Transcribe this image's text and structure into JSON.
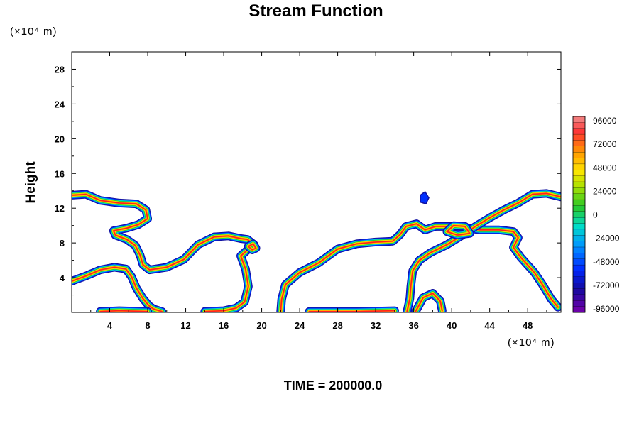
{
  "chart_data": {
    "type": "contour",
    "title": "Stream Function",
    "ylabel": "Height",
    "xlabel": "",
    "x_unit": "(×10⁴ m)",
    "y_unit": "(×10⁴ m)",
    "footer": "TIME = 200000.0",
    "xlim": [
      0,
      51.5
    ],
    "ylim": [
      0,
      30
    ],
    "x_ticks": [
      "4",
      "8",
      "12",
      "16",
      "20",
      "24",
      "28",
      "32",
      "36",
      "40",
      "44",
      "48"
    ],
    "y_ticks": [
      "4",
      "8",
      "12",
      "16",
      "20",
      "24",
      "28"
    ],
    "grid": false,
    "legend_position": "right",
    "colorbar": {
      "min": -96000,
      "max": 96000,
      "labels": [
        "96000",
        "72000",
        "48000",
        "24000",
        "0",
        "-24000",
        "-48000",
        "-72000",
        "-96000"
      ]
    },
    "fronts": [
      [
        [
          0,
          13.5
        ],
        [
          1.5,
          13.6
        ],
        [
          3,
          12.9
        ],
        [
          5,
          12.6
        ],
        [
          6.8,
          12.5
        ],
        [
          7.8,
          11.8
        ],
        [
          8.0,
          10.8
        ],
        [
          7.0,
          10.1
        ],
        [
          5.8,
          9.7
        ],
        [
          4.4,
          9.4
        ],
        [
          4.6,
          8.9
        ],
        [
          5.8,
          8.4
        ],
        [
          6.7,
          7.7
        ],
        [
          7.2,
          6.6
        ],
        [
          7.5,
          5.5
        ],
        [
          8.2,
          4.9
        ],
        [
          10,
          5.2
        ],
        [
          11.8,
          6.1
        ],
        [
          13.3,
          7.8
        ],
        [
          15,
          8.7
        ],
        [
          16.5,
          8.8
        ],
        [
          17.8,
          8.5
        ],
        [
          18.5,
          8.4
        ],
        [
          19.2,
          7.8
        ],
        [
          18.7,
          7.4
        ],
        [
          17.8,
          6.5
        ],
        [
          18.3,
          5.0
        ],
        [
          18.6,
          3.0
        ],
        [
          18.2,
          1.2
        ],
        [
          17.3,
          0.5
        ],
        [
          16.0,
          0.2
        ],
        [
          14.0,
          0.1
        ]
      ],
      [
        [
          0,
          3.6
        ],
        [
          1.5,
          4.2
        ],
        [
          3,
          4.9
        ],
        [
          4.5,
          5.2
        ],
        [
          5.7,
          5.0
        ],
        [
          6.3,
          4.1
        ],
        [
          6.8,
          2.8
        ],
        [
          7.5,
          1.6
        ],
        [
          8.1,
          0.8
        ],
        [
          8.6,
          0.4
        ],
        [
          9.5,
          0.1
        ]
      ],
      [
        [
          22.0,
          0.1
        ],
        [
          22.1,
          1.5
        ],
        [
          22.5,
          3.2
        ],
        [
          24,
          4.6
        ],
        [
          26,
          5.7
        ],
        [
          28,
          7.3
        ],
        [
          30,
          7.9
        ],
        [
          32,
          8.1
        ],
        [
          33.8,
          8.2
        ],
        [
          34.6,
          9.0
        ],
        [
          35.2,
          9.9
        ],
        [
          36.3,
          10.2
        ],
        [
          37.2,
          9.5
        ],
        [
          38.3,
          9.9
        ],
        [
          39.8,
          9.9
        ],
        [
          41,
          9.8
        ],
        [
          43,
          9.5
        ],
        [
          45,
          9.5
        ],
        [
          46.5,
          9.3
        ],
        [
          47.0,
          8.6
        ],
        [
          46.5,
          7.5
        ],
        [
          47.3,
          6.3
        ],
        [
          48.7,
          4.6
        ],
        [
          49.5,
          3.3
        ],
        [
          50.5,
          1.5
        ],
        [
          51.2,
          0.6
        ]
      ],
      [
        [
          35.3,
          0.1
        ],
        [
          35.6,
          1.6
        ],
        [
          35.7,
          3.0
        ],
        [
          35.9,
          4.8
        ],
        [
          36.6,
          6.0
        ],
        [
          37.8,
          6.9
        ],
        [
          39.5,
          7.8
        ],
        [
          41,
          8.8
        ],
        [
          42.5,
          9.9
        ],
        [
          44,
          10.9
        ],
        [
          45.5,
          11.8
        ],
        [
          47,
          12.6
        ],
        [
          48.5,
          13.6
        ],
        [
          50,
          13.7
        ],
        [
          51.5,
          13.3
        ]
      ],
      [
        [
          36.2,
          0.1
        ],
        [
          37.0,
          1.7
        ],
        [
          38.0,
          2.2
        ],
        [
          38.8,
          1.3
        ],
        [
          39.0,
          0.2
        ]
      ],
      [
        [
          39.5,
          9.3
        ],
        [
          40.6,
          8.9
        ],
        [
          41.9,
          9.1
        ],
        [
          41.4,
          9.9
        ],
        [
          40.2,
          10.0
        ],
        [
          39.5,
          9.3
        ]
      ],
      [
        [
          18.6,
          7.6
        ],
        [
          19.1,
          7.9
        ],
        [
          19.4,
          7.4
        ],
        [
          19.0,
          7.2
        ],
        [
          18.6,
          7.6
        ]
      ],
      [
        [
          3,
          0.1
        ],
        [
          5,
          0.2
        ],
        [
          8,
          0.1
        ]
      ],
      [
        [
          25,
          0.1
        ],
        [
          30,
          0.1
        ],
        [
          34,
          0.2
        ]
      ]
    ],
    "blobs": [
      [
        [
          36.7,
          12.7
        ],
        [
          37.3,
          12.5
        ],
        [
          37.6,
          13.2
        ],
        [
          37.2,
          13.9
        ],
        [
          36.7,
          13.5
        ]
      ]
    ],
    "colors": {
      "red": "#ff2020",
      "orange": "#ff9a00",
      "yellow": "#ffea00",
      "green": "#22cc22",
      "cyan": "#00d5d5",
      "blue": "#0030ff",
      "navy": "#1010a0"
    }
  }
}
